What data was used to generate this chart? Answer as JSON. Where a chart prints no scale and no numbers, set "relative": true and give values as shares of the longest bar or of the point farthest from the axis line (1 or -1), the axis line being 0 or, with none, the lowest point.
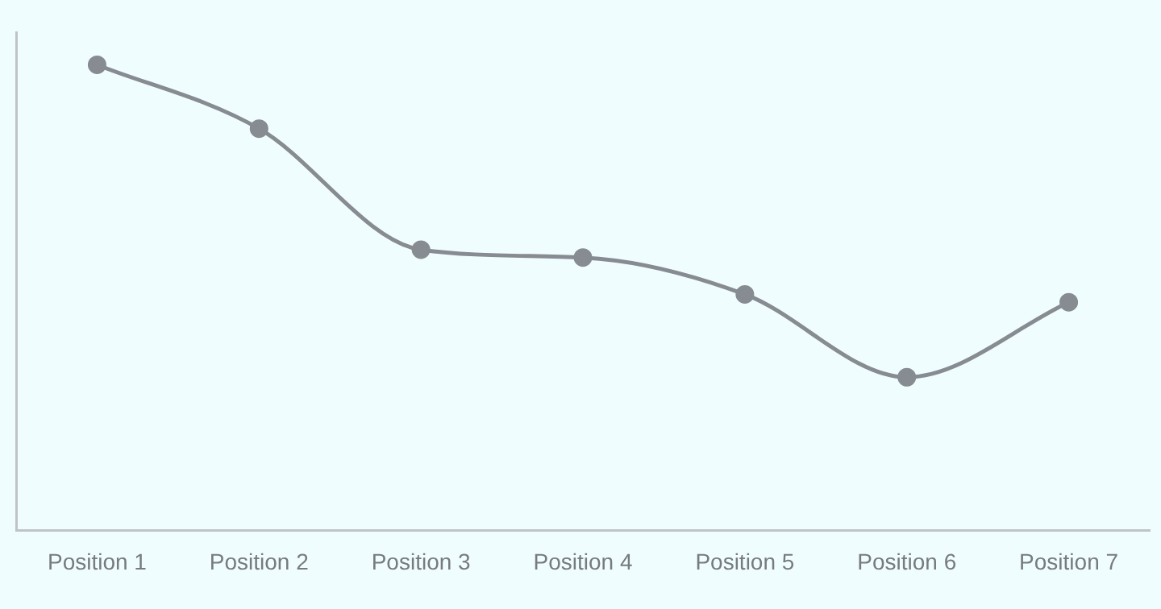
{
  "chart_data": {
    "type": "line",
    "relative": true,
    "categories": [
      "Position 1",
      "Position 2",
      "Position 3",
      "Position 4",
      "Position 5",
      "Position 6",
      "Position 7"
    ],
    "series": [
      {
        "color": "#878b92",
        "values": [
          1,
          0.863,
          0.603,
          0.586,
          0.507,
          0.329,
          0.49
        ]
      }
    ],
    "marker": "circle",
    "grid": false,
    "legend": false
  }
}
